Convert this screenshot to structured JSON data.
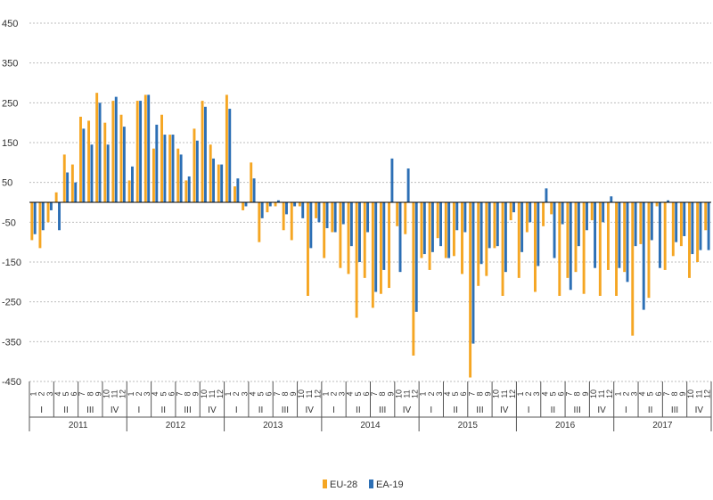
{
  "chart_data": {
    "type": "bar",
    "title": "",
    "xlabel": "",
    "ylabel": "",
    "ylim": [
      -450,
      450
    ],
    "yticks": [
      -450,
      -350,
      -250,
      -150,
      -50,
      50,
      150,
      250,
      350,
      450
    ],
    "grid": true,
    "legend": "bottom-center",
    "months": [
      "1",
      "2",
      "3",
      "4",
      "5",
      "6",
      "7",
      "8",
      "9",
      "10",
      "11",
      "12"
    ],
    "quarters": [
      "I",
      "II",
      "III",
      "IV"
    ],
    "years": [
      "2011",
      "2012",
      "2013",
      "2014",
      "2015",
      "2016",
      "2017"
    ],
    "series": [
      {
        "name": "EU-28",
        "color": "#f5a623",
        "values": [
          -95,
          -115,
          -50,
          25,
          120,
          95,
          215,
          205,
          275,
          200,
          255,
          220,
          55,
          255,
          270,
          135,
          220,
          170,
          135,
          55,
          185,
          255,
          145,
          95,
          270,
          40,
          -20,
          100,
          -100,
          -25,
          -10,
          -70,
          -95,
          -10,
          -235,
          -40,
          -140,
          -75,
          -165,
          -180,
          -290,
          -190,
          -265,
          -230,
          -215,
          -60,
          -80,
          -385,
          -140,
          -170,
          -90,
          -140,
          -135,
          -180,
          -440,
          -210,
          -185,
          -115,
          -235,
          -45,
          -190,
          -75,
          -225,
          -60,
          -30,
          -235,
          -190,
          -175,
          -230,
          -45,
          -235,
          -170,
          -235,
          -175,
          -335,
          -105,
          -240,
          -10,
          -170,
          -135,
          -110,
          -190,
          -150,
          -70
        ],
        "values_count": 84
      },
      {
        "name": "EA-19",
        "color": "#2c6fb5",
        "values": [
          -80,
          -70,
          -20,
          -70,
          75,
          50,
          185,
          145,
          250,
          145,
          265,
          190,
          90,
          255,
          270,
          195,
          170,
          170,
          120,
          65,
          155,
          240,
          110,
          95,
          235,
          60,
          -10,
          60,
          -40,
          -10,
          5,
          -30,
          -10,
          -40,
          -115,
          -50,
          -65,
          -75,
          -55,
          -110,
          -150,
          -75,
          -225,
          -170,
          110,
          -175,
          85,
          -275,
          -130,
          -125,
          -110,
          -140,
          -70,
          -75,
          -355,
          -155,
          -115,
          -110,
          -175,
          -25,
          -125,
          -50,
          -160,
          35,
          -140,
          -55,
          -220,
          -110,
          -70,
          -165,
          -50,
          15,
          -165,
          -200,
          -110,
          -270,
          -95,
          -165,
          5,
          -100,
          -85,
          -130,
          -120,
          -120
        ]
      }
    ]
  }
}
